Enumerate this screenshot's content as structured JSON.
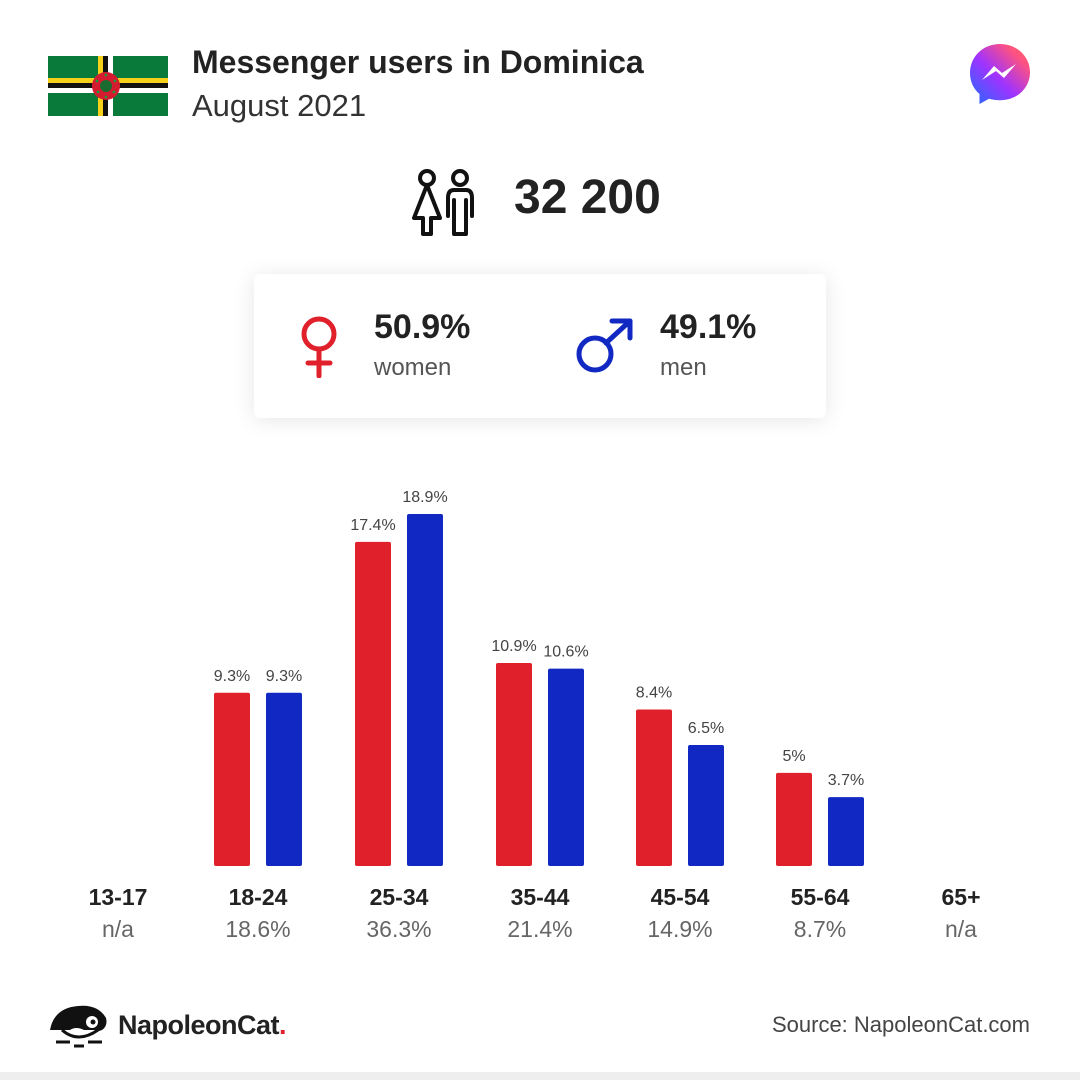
{
  "header": {
    "title": "Messenger users in Dominica",
    "subtitle": "August 2021"
  },
  "total": {
    "value": "32 200"
  },
  "gender": {
    "women": {
      "pct": "50.9%",
      "label": "women",
      "color": "#e0202a"
    },
    "men": {
      "pct": "49.1%",
      "label": "men",
      "color": "#1128c2"
    }
  },
  "chart_data": {
    "type": "bar",
    "categories": [
      "13-17",
      "18-24",
      "25-34",
      "35-44",
      "45-54",
      "55-64",
      "65+"
    ],
    "category_totals": [
      "n/a",
      "18.6%",
      "36.3%",
      "21.4%",
      "14.9%",
      "8.7%",
      "n/a"
    ],
    "series": [
      {
        "values": [
          null,
          9.3,
          17.4,
          10.9,
          8.4,
          5,
          null
        ],
        "labels": [
          "",
          "9.3%",
          "17.4%",
          "10.9%",
          "8.4%",
          "5%",
          ""
        ],
        "color": "#e0202a"
      },
      {
        "values": [
          null,
          9.3,
          18.9,
          10.6,
          6.5,
          3.7,
          null
        ],
        "labels": [
          "",
          "9.3%",
          "18.9%",
          "10.6%",
          "6.5%",
          "3.7%",
          ""
        ],
        "color": "#1128c2"
      }
    ],
    "ylim": [
      0,
      18.9
    ]
  },
  "footer": {
    "brand": "NapoleonCat",
    "brand_dot": ".",
    "source": "Source: NapoleonCat.com"
  },
  "icons": {
    "flag": "dominica-flag-icon",
    "app": "messenger-logo-icon",
    "people": "people-icon",
    "female": "female-symbol-icon",
    "male": "male-symbol-icon",
    "brand": "napoleoncat-logo-icon"
  }
}
